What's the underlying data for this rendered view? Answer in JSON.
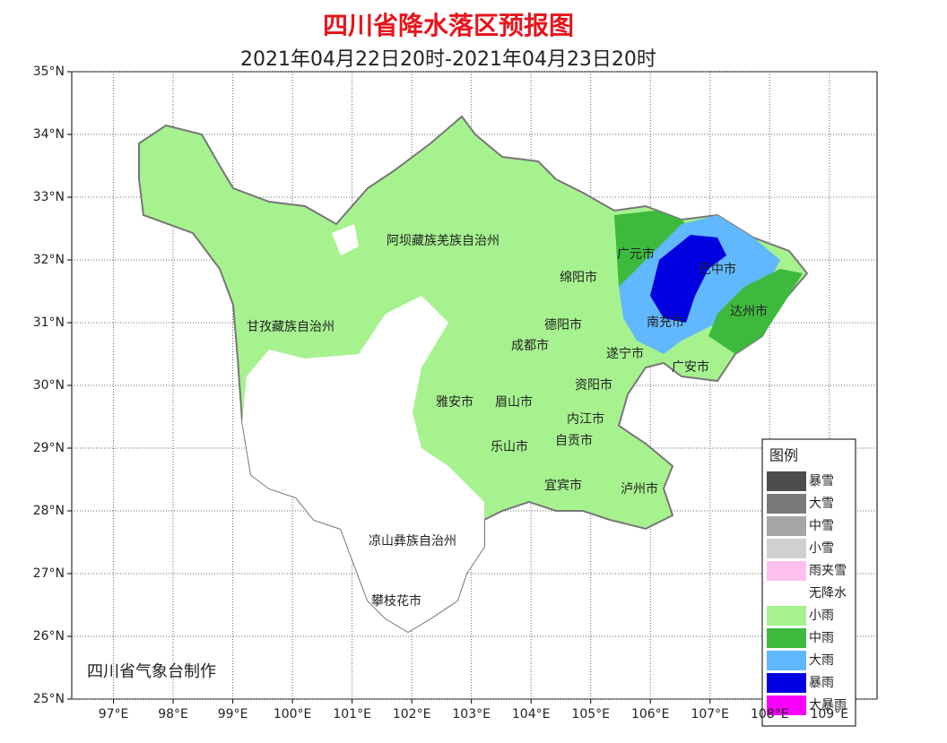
{
  "header": {
    "title": "四川省降水落区预报图",
    "subtitle": "2021年04月22日20时-2021年04月23日20时"
  },
  "axes": {
    "lon_ticks": [
      {
        "value": 97,
        "label": "97°E"
      },
      {
        "value": 98,
        "label": "98°E"
      },
      {
        "value": 99,
        "label": "99°E"
      },
      {
        "value": 100,
        "label": "100°E"
      },
      {
        "value": 101,
        "label": "101°E"
      },
      {
        "value": 102,
        "label": "102°E"
      },
      {
        "value": 103,
        "label": "103°E"
      },
      {
        "value": 104,
        "label": "104°E"
      },
      {
        "value": 105,
        "label": "105°E"
      },
      {
        "value": 106,
        "label": "106°E"
      },
      {
        "value": 107,
        "label": "107°E"
      },
      {
        "value": 108,
        "label": "108°E"
      },
      {
        "value": 109,
        "label": "109°E"
      }
    ],
    "lat_ticks": [
      {
        "value": 35,
        "label": "35°N"
      },
      {
        "value": 34,
        "label": "34°N"
      },
      {
        "value": 33,
        "label": "33°N"
      },
      {
        "value": 32,
        "label": "32°N"
      },
      {
        "value": 31,
        "label": "31°N"
      },
      {
        "value": 30,
        "label": "30°N"
      },
      {
        "value": 29,
        "label": "29°N"
      },
      {
        "value": 28,
        "label": "28°N"
      },
      {
        "value": 27,
        "label": "27°N"
      },
      {
        "value": 26,
        "label": "26°N"
      },
      {
        "value": 25,
        "label": "25°N"
      }
    ],
    "lonlim": [
      96.3,
      109.8
    ],
    "latlim": [
      25,
      35
    ]
  },
  "places": [
    "阿坝藏族羌族自治州",
    "甘孜藏族自治州",
    "广元市",
    "巴中市",
    "绵阳市",
    "达州市",
    "德阳市",
    "南充市",
    "成都市",
    "遂宁市",
    "广安市",
    "资阳市",
    "雅安市",
    "眉山市",
    "内江市",
    "自贡市",
    "乐山市",
    "宜宾市",
    "泸州市",
    "凉山彝族自治州",
    "攀枝花市"
  ],
  "legend": {
    "title": "图例",
    "items": [
      {
        "label": "暴雪",
        "color": "#4d4d4d"
      },
      {
        "label": "大雪",
        "color": "#7a7a7a"
      },
      {
        "label": "中雪",
        "color": "#a6a6a6"
      },
      {
        "label": "小雪",
        "color": "#d0d0d0"
      },
      {
        "label": "雨夹雪",
        "color": "#ffbfef"
      },
      {
        "label": "无降水",
        "color": "#ffffff"
      },
      {
        "label": "小雨",
        "color": "#a6f28f"
      },
      {
        "label": "中雨",
        "color": "#3dba3d"
      },
      {
        "label": "大雨",
        "color": "#61b8ff"
      },
      {
        "label": "暴雨",
        "color": "#0000e1"
      },
      {
        "label": "大暴雨",
        "color": "#fa00fa"
      }
    ]
  },
  "footer": {
    "credit": "四川省气象台制作"
  }
}
